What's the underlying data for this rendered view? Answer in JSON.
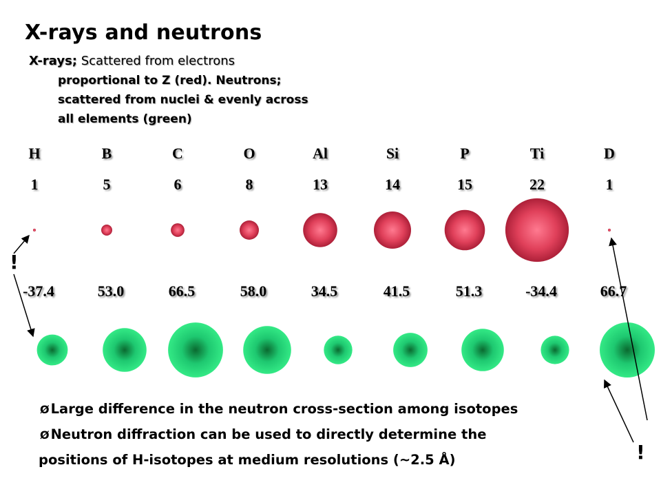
{
  "title": "X-rays and neutrons",
  "intro": {
    "lead": "X-rays;",
    "line1_rest": " Scattered from electrons",
    "line2": "proportional to Z (red). Neutrons;",
    "line3": "scattered from nuclei  & evenly across",
    "line4": "all elements (green)"
  },
  "elements": [
    {
      "symbol": "H",
      "z": "1",
      "length": "-37.4",
      "z_value": 1,
      "length_value": -37.4
    },
    {
      "symbol": "B",
      "z": "5",
      "length": "53.0",
      "z_value": 5,
      "length_value": 53.0
    },
    {
      "symbol": "C",
      "z": "6",
      "length": "66.5",
      "z_value": 6,
      "length_value": 66.5
    },
    {
      "symbol": "O",
      "z": "8",
      "length": "58.0",
      "z_value": 8,
      "length_value": 58.0
    },
    {
      "symbol": "Al",
      "z": "13",
      "length": "34.5",
      "z_value": 13,
      "length_value": 34.5
    },
    {
      "symbol": "Si",
      "z": "14",
      "length": "41.5",
      "z_value": 14,
      "length_value": 41.5
    },
    {
      "symbol": "P",
      "z": "15",
      "length": "51.3",
      "z_value": 15,
      "length_value": 51.3
    },
    {
      "symbol": "Ti",
      "z": "22",
      "length": "-34.4",
      "z_value": 22,
      "length_value": -34.4
    },
    {
      "symbol": "D",
      "z": "1",
      "length": "66.7",
      "z_value": 1,
      "length_value": 66.7
    }
  ],
  "colors": {
    "xray_sphere": "#e0405a",
    "xray_sphere_dark": "#a01830",
    "neutron_sphere": "#1ee07a",
    "neutron_sphere_dark": "#0a6a30",
    "arrow": "#000000"
  },
  "annotations": {
    "left_mark": "!",
    "right_mark": "!"
  },
  "bullets": {
    "marker": "Ø",
    "item1": "Large difference in the neutron cross-section among isotopes",
    "item2_line1": "Neutron diffraction can be used to directly determine the",
    "item2_line2": "positions of H-isotopes at medium resolutions (~2.5 Å)"
  }
}
